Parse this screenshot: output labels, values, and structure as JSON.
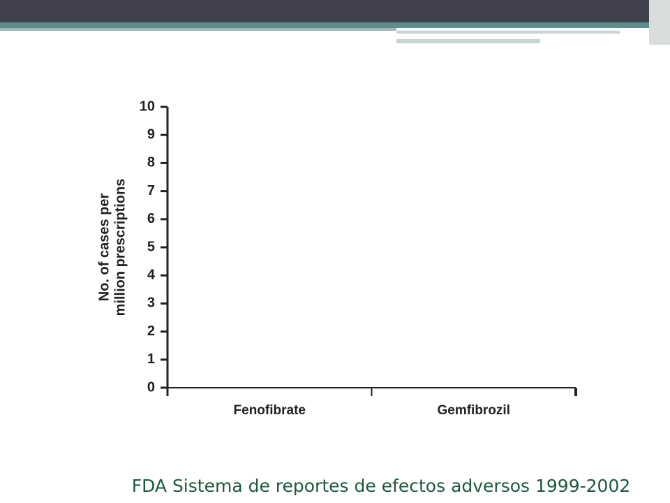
{
  "chart_data": {
    "type": "bar",
    "y_label": [
      "No. of cases per",
      "million prescriptions"
    ],
    "categories": [
      "Fenofibrate",
      "Gemfibrozil"
    ],
    "values": [
      0,
      0
    ],
    "color": "#111111",
    "ylim": [
      0,
      10
    ],
    "yticks": [
      0,
      1,
      2,
      3,
      4,
      5,
      6,
      7,
      8,
      9,
      10
    ],
    "caption": "FDA Sistema de reportes de efectos adversos 1999-2002"
  }
}
